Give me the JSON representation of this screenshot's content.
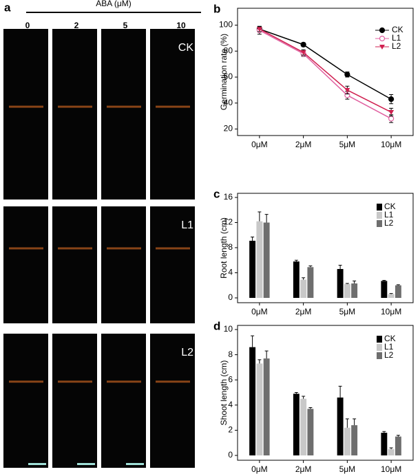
{
  "panel_a": {
    "label": "a",
    "treatment": "ABA (μM)",
    "columns": [
      "0",
      "2",
      "5",
      "10"
    ],
    "rows": [
      "CK",
      "L1",
      "L2"
    ]
  },
  "chart_data": [
    {
      "type": "line",
      "label": "b",
      "ylabel": "Germination rate (%)",
      "categories": [
        "0μM",
        "2μM",
        "5μM",
        "10μM"
      ],
      "series": [
        {
          "name": "CK",
          "color": "#000000",
          "marker": "circle",
          "values": [
            97,
            85,
            62,
            43
          ],
          "errors": [
            2,
            1.5,
            2,
            3.5
          ]
        },
        {
          "name": "L1",
          "color": "#e060a0",
          "marker": "open-circle",
          "values": [
            96,
            78,
            46,
            28
          ],
          "errors": [
            3,
            2,
            3,
            3
          ]
        },
        {
          "name": "L2",
          "color": "#d02050",
          "marker": "triangle",
          "values": [
            97,
            79,
            50,
            33
          ],
          "errors": [
            2,
            2,
            3,
            3
          ]
        }
      ],
      "ylim": [
        15,
        113
      ],
      "yticks": [
        20,
        40,
        60,
        80,
        100
      ],
      "legend": "upper right"
    },
    {
      "type": "bar",
      "label": "c",
      "ylabel": "Root length (cm)",
      "categories": [
        "0μM",
        "2μM",
        "5μM",
        "10μM"
      ],
      "series": [
        {
          "name": "CK",
          "color": "#000000",
          "values": [
            9.1,
            5.8,
            4.6,
            2.7
          ],
          "errors": [
            0.6,
            0.2,
            0.6,
            0.1
          ]
        },
        {
          "name": "L1",
          "color": "#c8c8c8",
          "values": [
            12.2,
            2.9,
            2.2,
            0.6
          ],
          "errors": [
            1.5,
            0.3,
            0.1,
            0.1
          ]
        },
        {
          "name": "L2",
          "color": "#6e6e6e",
          "values": [
            12.0,
            4.9,
            2.3,
            2.0
          ],
          "errors": [
            1.3,
            0.2,
            0.4,
            0.1
          ]
        }
      ],
      "ylim": [
        0,
        16
      ],
      "yticks": [
        0,
        4,
        8,
        12,
        16
      ],
      "legend": "upper right"
    },
    {
      "type": "bar",
      "label": "d",
      "ylabel": "Shoot length (cm)",
      "categories": [
        "0μM",
        "2μM",
        "5μM",
        "10μM"
      ],
      "series": [
        {
          "name": "CK",
          "color": "#000000",
          "values": [
            8.6,
            4.9,
            4.6,
            1.8
          ],
          "errors": [
            0.9,
            0.1,
            0.9,
            0.1
          ]
        },
        {
          "name": "L1",
          "color": "#c8c8c8",
          "values": [
            7.3,
            4.5,
            2.2,
            0.5
          ],
          "errors": [
            0.3,
            0.2,
            0.7,
            0.1
          ]
        },
        {
          "name": "L2",
          "color": "#6e6e6e",
          "values": [
            7.7,
            3.7,
            2.4,
            1.5
          ],
          "errors": [
            0.6,
            0.1,
            0.5,
            0.1
          ]
        }
      ],
      "ylim": [
        0,
        10
      ],
      "yticks": [
        0,
        2,
        4,
        6,
        8,
        10
      ],
      "legend": "upper right"
    }
  ]
}
